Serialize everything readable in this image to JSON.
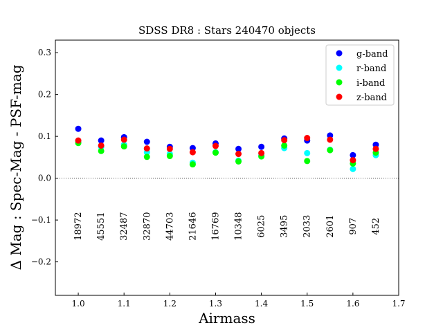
{
  "chart_data": {
    "type": "scatter",
    "title": "SDSS DR8 : Stars 240470 objects",
    "xlabel": "Airmass",
    "ylabel": "Δ Mag : Spec-Mag - PSF-mag",
    "xlim": [
      0.95,
      1.7
    ],
    "ylim": [
      -0.28,
      0.33
    ],
    "x_ticks": [
      "1.0",
      "1.1",
      "1.2",
      "1.3",
      "1.4",
      "1.5",
      "1.6",
      "1.7"
    ],
    "x_tick_values": [
      1.0,
      1.1,
      1.2,
      1.3,
      1.4,
      1.5,
      1.6,
      1.7
    ],
    "y_ticks": [
      "−0.2",
      "−0.1",
      "0.0",
      "0.1",
      "0.2",
      "0.3"
    ],
    "y_tick_values": [
      -0.2,
      -0.1,
      0.0,
      0.1,
      0.2,
      0.3
    ],
    "grid": false,
    "legend_position": "top-right",
    "zero_line": true,
    "x": [
      1.0,
      1.05,
      1.1,
      1.15,
      1.2,
      1.25,
      1.3,
      1.35,
      1.4,
      1.45,
      1.5,
      1.55,
      1.6,
      1.65
    ],
    "counts": [
      "18972",
      "45551",
      "32487",
      "32870",
      "44703",
      "21646",
      "16769",
      "10348",
      "6025",
      "3495",
      "2033",
      "2601",
      "907",
      "452"
    ],
    "counts_y": -0.115,
    "series": [
      {
        "name": "g-band",
        "color": "#0000ff",
        "values": [
          0.118,
          0.09,
          0.098,
          0.087,
          0.075,
          0.072,
          0.083,
          0.07,
          0.075,
          0.095,
          0.09,
          0.102,
          0.055,
          0.08
        ]
      },
      {
        "name": "r-band",
        "color": "#00ffff",
        "values": [
          0.088,
          0.075,
          0.08,
          0.062,
          0.058,
          0.037,
          0.062,
          0.042,
          0.055,
          0.072,
          0.06,
          0.068,
          0.022,
          0.055
        ]
      },
      {
        "name": "i-band",
        "color": "#00ff00",
        "values": [
          0.084,
          0.065,
          0.076,
          0.051,
          0.053,
          0.033,
          0.061,
          0.04,
          0.052,
          0.078,
          0.041,
          0.067,
          0.035,
          0.061
        ]
      },
      {
        "name": "z-band",
        "color": "#ff0000",
        "values": [
          0.09,
          0.078,
          0.092,
          0.071,
          0.07,
          0.062,
          0.077,
          0.058,
          0.06,
          0.091,
          0.096,
          0.092,
          0.043,
          0.07
        ]
      }
    ]
  }
}
